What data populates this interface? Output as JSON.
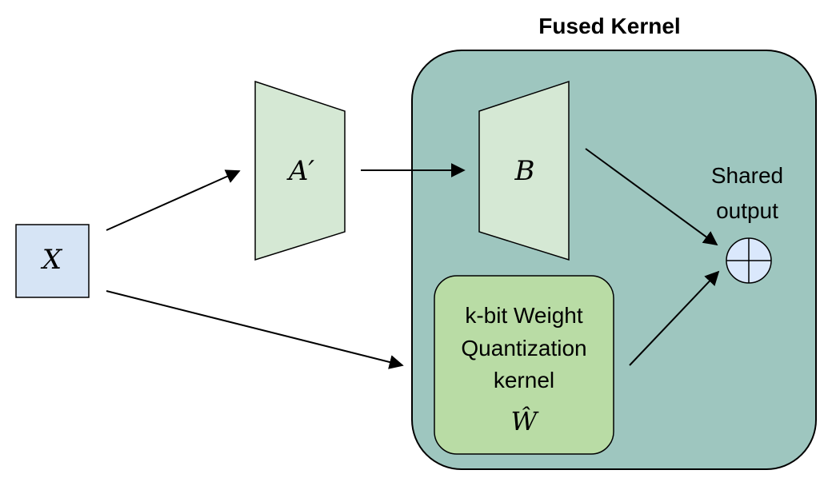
{
  "title": "Fused Kernel",
  "input": {
    "label": "X"
  },
  "adapter_a": {
    "label": "A′"
  },
  "adapter_b": {
    "label": "B"
  },
  "output": {
    "line1": "Shared",
    "line2": "output"
  },
  "quant_kernel": {
    "line1": "k-bit Weight",
    "line2": "Quantization",
    "line3": "kernel",
    "symbol": "Ŵ"
  },
  "colors": {
    "fused_bg": "#9ec6bf",
    "trapezoid_fill": "#d5e8d4",
    "trapezoid_stroke": "#82b366",
    "input_fill": "#d6e4f5",
    "quant_fill": "#b9dca5",
    "sum_fill": "#dae8fc",
    "stroke": "#000000"
  }
}
